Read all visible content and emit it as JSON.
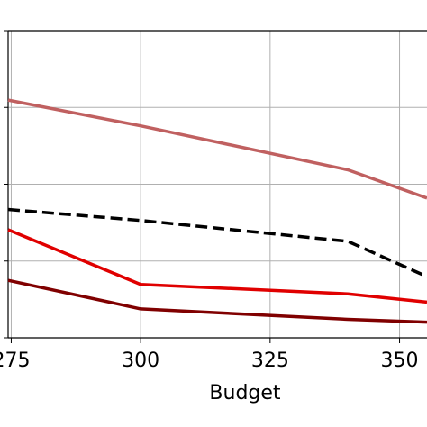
{
  "chart_data": {
    "type": "line",
    "xlabel": "Budget",
    "ylabel": "",
    "title": "",
    "x_ticks": [
      275,
      300,
      325,
      350
    ],
    "x_tick_labels": [
      "275",
      "300",
      "325",
      "350"
    ],
    "xlim": [
      274.4,
      355.3
    ],
    "ylim": [
      0,
      1
    ],
    "grid": true,
    "y_gridlines": [
      0.0,
      0.25,
      0.5,
      0.75,
      1.0
    ],
    "series": [
      {
        "color": "#c06060",
        "dash": "solid",
        "points": [
          [
            274.4,
            0.774
          ],
          [
            300,
            0.69
          ],
          [
            340,
            0.547
          ],
          [
            355.3,
            0.455
          ]
        ]
      },
      {
        "color": "#000000",
        "dash": "dashed",
        "points": [
          [
            274.4,
            0.418
          ],
          [
            300,
            0.382
          ],
          [
            340,
            0.314
          ],
          [
            355.3,
            0.199
          ]
        ]
      },
      {
        "color": "#e00000",
        "dash": "solid",
        "points": [
          [
            274.4,
            0.352
          ],
          [
            300,
            0.174
          ],
          [
            340,
            0.143
          ],
          [
            355.3,
            0.116
          ]
        ]
      },
      {
        "color": "#800000",
        "dash": "solid",
        "points": [
          [
            274.4,
            0.187
          ],
          [
            300,
            0.094
          ],
          [
            340,
            0.06
          ],
          [
            355.3,
            0.051
          ]
        ]
      }
    ]
  }
}
